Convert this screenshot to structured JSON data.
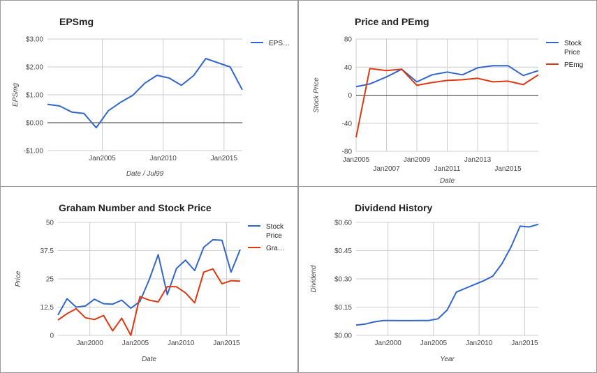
{
  "chart_data": [
    {
      "type": "line",
      "title": "EPSmg",
      "xlabel": "Date / Jul99",
      "ylabel": "EPSmg",
      "ylim": [
        -1,
        3
      ],
      "xlim": [
        2000.5,
        2016.5
      ],
      "yticks": [
        -1,
        0,
        1,
        2,
        3
      ],
      "ytick_labels": [
        "-$1.00",
        "$0.00",
        "$1.00",
        "$2.00",
        "$3.00"
      ],
      "xticks": [
        2005,
        2010,
        2015
      ],
      "xtick_labels": [
        "Jan2005",
        "Jan2010",
        "Jan2015"
      ],
      "baseline": 0,
      "legend": "right",
      "series": [
        {
          "name": "EPS…",
          "color": "#3366cc",
          "x": [
            2000.5,
            2001.5,
            2002.5,
            2003.5,
            2004.5,
            2005.5,
            2006.5,
            2007.5,
            2008.5,
            2009.5,
            2010.5,
            2011.5,
            2012.5,
            2013.5,
            2014.5,
            2015.5,
            2016.5
          ],
          "y": [
            0.66,
            0.6,
            0.38,
            0.33,
            -0.18,
            0.43,
            0.73,
            0.98,
            1.42,
            1.7,
            1.6,
            1.34,
            1.69,
            2.3,
            2.15,
            2.0,
            1.18
          ]
        }
      ]
    },
    {
      "type": "line",
      "title": "Price and PEmg",
      "xlabel": "Date",
      "ylabel": "Stock Price",
      "ylim": [
        -80,
        80
      ],
      "xlim": [
        2005,
        2017
      ],
      "yticks": [
        -80,
        -40,
        0,
        40,
        80
      ],
      "ytick_labels": [
        "-80",
        "-40",
        "0",
        "40",
        "80"
      ],
      "xticks": [
        2005,
        2007,
        2009,
        2011,
        2013,
        2015
      ],
      "xtick_labels": [
        "Jan2005",
        "Jan2007",
        "Jan2009",
        "Jan2011",
        "Jan2013",
        "Jan2015"
      ],
      "baseline": 0,
      "legend": "right",
      "series": [
        {
          "name": "Stock Price",
          "color": "#3366cc",
          "x": [
            2005,
            2005.9,
            2007,
            2008,
            2009,
            2010,
            2011,
            2012,
            2013,
            2014,
            2015,
            2016,
            2017
          ],
          "y": [
            12,
            16,
            26,
            37,
            19,
            29,
            33,
            29,
            39,
            42,
            42,
            28,
            35
          ]
        },
        {
          "name": "PEmg",
          "color": "#dc3912",
          "x": [
            2005,
            2005.9,
            2007,
            2008,
            2009,
            2010,
            2011,
            2012,
            2013,
            2014,
            2015,
            2016,
            2017
          ],
          "y": [
            -60,
            38,
            35,
            37,
            14,
            18,
            21,
            22,
            24,
            19,
            20,
            15,
            29
          ]
        }
      ]
    },
    {
      "type": "line",
      "title": "Graham Number and Stock Price",
      "xlabel": "Date",
      "ylabel": "Price",
      "ylim": [
        0,
        50
      ],
      "xlim": [
        1996.5,
        2016.5
      ],
      "yticks": [
        0,
        12.5,
        25,
        37.5,
        50
      ],
      "ytick_labels": [
        "0",
        "12.5",
        "25",
        "37.5",
        "50"
      ],
      "xticks": [
        2000,
        2005,
        2010,
        2015
      ],
      "xtick_labels": [
        "Jan2000",
        "Jan2005",
        "Jan2010",
        "Jan2015"
      ],
      "legend": "right",
      "series": [
        {
          "name": "Stock Price",
          "color": "#3366cc",
          "x": [
            1996.5,
            1997.5,
            1998.5,
            1999.5,
            2000.5,
            2001.5,
            2002.5,
            2003.5,
            2004.5,
            2005.5,
            2006.5,
            2007.5,
            2008.5,
            2009.5,
            2010.5,
            2011.5,
            2012.5,
            2013.5,
            2014.5,
            2015.5,
            2016.5
          ],
          "y": [
            9,
            16.2,
            12.5,
            13,
            16,
            14,
            13.8,
            15.6,
            12,
            15,
            24.5,
            35.7,
            18,
            29.6,
            33.3,
            28.7,
            39,
            42.3,
            42.1,
            28,
            38
          ]
        },
        {
          "name": "Gra…",
          "color": "#dc3912",
          "x": [
            1996.5,
            1997.5,
            1998.5,
            1999.5,
            2000.5,
            2001.5,
            2002.5,
            2003.5,
            2004.5,
            2005.5,
            2006.5,
            2007.5,
            2008.5,
            2009.5,
            2010.5,
            2011.5,
            2012.5,
            2013.5,
            2014.5,
            2015.5,
            2016.5
          ],
          "y": [
            6.8,
            9.6,
            11.8,
            7.8,
            7,
            8.8,
            2,
            7.6,
            0,
            17.2,
            15.6,
            14.8,
            21.6,
            21.5,
            18.8,
            14.4,
            28,
            29.4,
            22.8,
            24.2,
            24
          ]
        }
      ]
    },
    {
      "type": "line",
      "title": "Dividend History",
      "xlabel": "Year",
      "ylabel": "Dividend",
      "ylim": [
        0,
        0.6
      ],
      "xlim": [
        1996.5,
        2016.5
      ],
      "yticks": [
        0,
        0.15,
        0.3,
        0.45,
        0.6
      ],
      "ytick_labels": [
        "$0.00",
        "$0.15",
        "$0.30",
        "$0.45",
        "$0.60"
      ],
      "xticks": [
        2000,
        2005,
        2010,
        2015
      ],
      "xtick_labels": [
        "Jan2000",
        "Jan2005",
        "Jan2010",
        "Jan2015"
      ],
      "legend": "none",
      "series": [
        {
          "name": "",
          "color": "#3366cc",
          "x": [
            1996.5,
            1997.5,
            1998.5,
            1999.5,
            2000.5,
            2001.5,
            2002.5,
            2003.5,
            2004.5,
            2005.5,
            2006.5,
            2007.5,
            2008.5,
            2009.5,
            2010.5,
            2011.5,
            2012.5,
            2013.5,
            2014.5,
            2015.5,
            2016.5
          ],
          "y": [
            0.054,
            0.06,
            0.072,
            0.079,
            0.079,
            0.078,
            0.078,
            0.079,
            0.079,
            0.088,
            0.135,
            0.23,
            0.25,
            0.27,
            0.29,
            0.315,
            0.38,
            0.47,
            0.58,
            0.576,
            0.59
          ]
        }
      ]
    }
  ]
}
